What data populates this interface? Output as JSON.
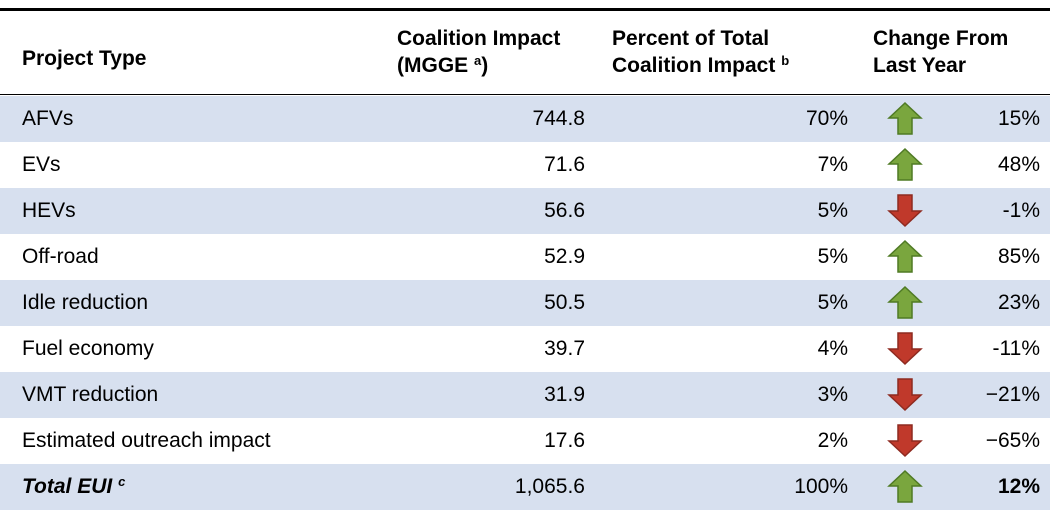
{
  "table": {
    "headers": [
      {
        "lines": [
          "Project Type"
        ]
      },
      {
        "lines": [
          "Coalition Impact",
          "(MGGE"
        ],
        "sup": "a",
        "after": ")"
      },
      {
        "lines": [
          "Percent of Total",
          "Coalition Impact"
        ],
        "sup": "b"
      },
      {
        "lines": [
          "Change From",
          "Last Year"
        ]
      }
    ],
    "rows": [
      {
        "type": "AFVs",
        "impact": "744.8",
        "percent": "70%",
        "arrow": "up",
        "change": "15%"
      },
      {
        "type": "EVs",
        "impact": "71.6",
        "percent": "7%",
        "arrow": "up",
        "change": "48%"
      },
      {
        "type": "HEVs",
        "impact": "56.6",
        "percent": "5%",
        "arrow": "down",
        "change": "-1%"
      },
      {
        "type": "Off-road",
        "impact": "52.9",
        "percent": "5%",
        "arrow": "up",
        "change": "85%"
      },
      {
        "type": "Idle reduction",
        "impact": "50.5",
        "percent": "5%",
        "arrow": "up",
        "change": "23%"
      },
      {
        "type": "Fuel economy",
        "impact": "39.7",
        "percent": "4%",
        "arrow": "down",
        "change": "-11%"
      },
      {
        "type": "VMT reduction",
        "impact": "31.9",
        "percent": "3%",
        "arrow": "down",
        "change": "−21%"
      },
      {
        "type": "Estimated outreach impact",
        "impact": "17.6",
        "percent": "2%",
        "arrow": "down",
        "change": "−65%"
      },
      {
        "type": "Total EUI",
        "sup": "c",
        "impact": "1,065.6",
        "percent": "100%",
        "arrow": "up",
        "change": "12%",
        "total": true
      }
    ]
  }
}
